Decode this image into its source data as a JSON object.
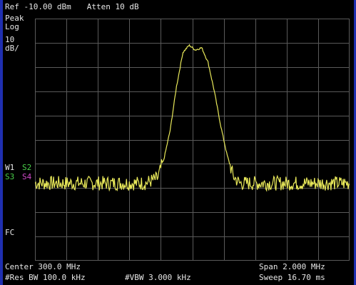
{
  "header": {
    "ref_level": "Ref -10.00 dBm",
    "attenuation": "Atten 10 dB"
  },
  "sidebar": {
    "detector": "Peak",
    "scale_type": "Log",
    "scale_value": "10",
    "scale_unit": "dB/",
    "w1": "W1",
    "s2": "S2",
    "s3": "S3",
    "s4": "S4",
    "fc": "FC"
  },
  "footer": {
    "center_freq": "Center 300.0 MHz",
    "res_bw": "#Res BW 100.0 kHz",
    "vbw": "#VBW 3.000 kHz",
    "span": "Span 2.000 MHz",
    "sweep": "Sweep 16.70 ms"
  },
  "colors": {
    "background": "#000000",
    "grid": "#5a5a5a",
    "trace": "#e8e85a",
    "frame": "#1f2fb0"
  },
  "chart_data": {
    "type": "line",
    "x_range_mhz": [
      299.0,
      301.0
    ],
    "y_range_dbm": [
      -110,
      -10
    ],
    "grid": true,
    "series": [
      {
        "x": [
          299.0,
          299.3,
          299.7,
          299.78,
          299.82,
          299.86,
          299.9,
          299.94,
          299.98,
          300.02,
          300.06,
          300.1,
          300.14,
          300.18,
          300.22,
          300.26,
          300.3,
          300.36,
          300.7,
          301.0
        ],
        "values": [
          -78,
          -78,
          -78,
          -76,
          -68,
          -56,
          -38,
          -24,
          -21,
          -23,
          -22,
          -28,
          -40,
          -54,
          -66,
          -75,
          -78,
          -78,
          -78,
          -78
        ]
      }
    ]
  }
}
